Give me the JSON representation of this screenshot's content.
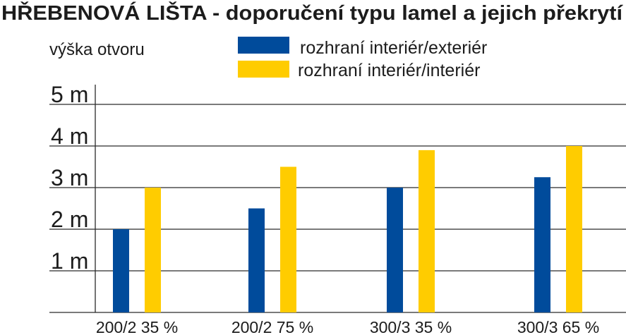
{
  "chart_data": {
    "type": "bar",
    "title": "HŘEBENOVÁ LIŠTA - doporučení typu lamel a jejich překrytí",
    "ylabel": "výška otvoru",
    "categories": [
      "200/2 35 %",
      "200/2 75 %",
      "300/3 35 %",
      "300/3 65 %"
    ],
    "series": [
      {
        "name": "rozhraní interiér/exteriér",
        "color": "#004b9b",
        "values": [
          2.0,
          2.5,
          3.0,
          3.25
        ]
      },
      {
        "name": "rozhraní interiér/interiér",
        "color": "#ffcc00",
        "values": [
          3.0,
          3.5,
          3.9,
          4.0
        ]
      }
    ],
    "yticks": [
      {
        "value": 5,
        "label": "5 m"
      },
      {
        "value": 4,
        "label": "4 m"
      },
      {
        "value": 3,
        "label": "3 m"
      },
      {
        "value": 2,
        "label": "2 m"
      },
      {
        "value": 1,
        "label": "1 m"
      }
    ],
    "ylim": [
      0,
      5
    ],
    "grid": true,
    "legend": "top-center"
  }
}
